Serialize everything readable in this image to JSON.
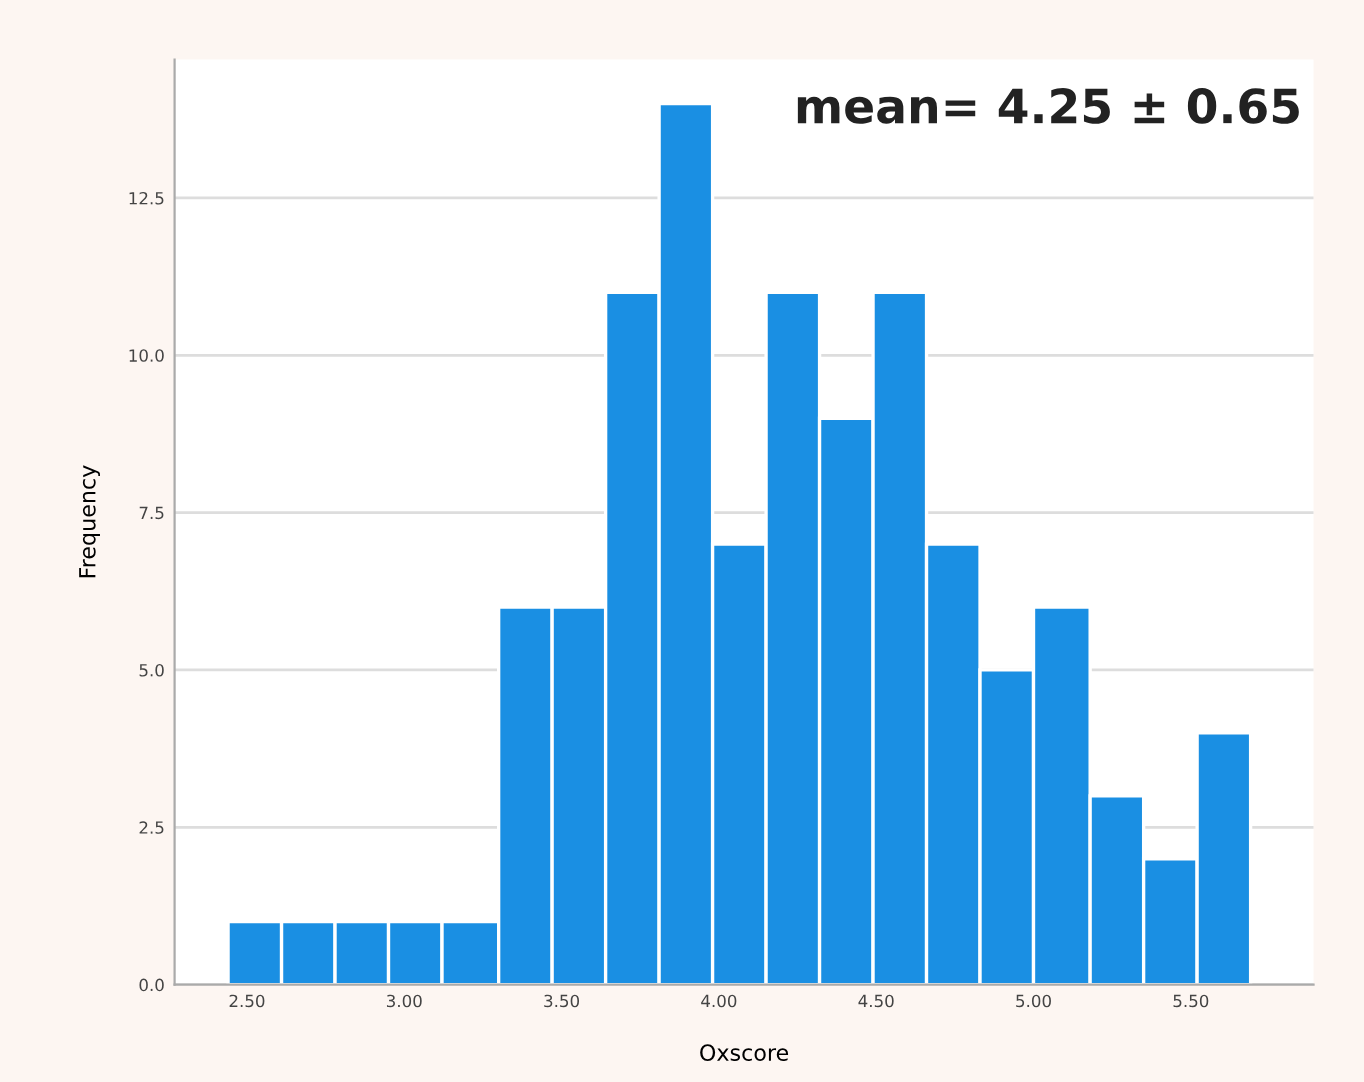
{
  "chart_data": {
    "type": "histogram",
    "xlabel": "Oxscore",
    "ylabel": "Frequency",
    "bins": [
      2.44,
      2.61,
      2.78,
      2.95,
      3.12,
      3.3,
      3.47,
      3.64,
      3.81,
      3.98,
      4.15,
      4.32,
      4.49,
      4.66,
      4.83,
      5.0,
      5.18,
      5.35,
      5.52,
      5.69
    ],
    "values": [
      1,
      1,
      1,
      1,
      1,
      6,
      6,
      11,
      14,
      7,
      11,
      9,
      11,
      7,
      5,
      6,
      3,
      2,
      4
    ],
    "color": "#1a8fe3",
    "xlim": [
      2.27,
      5.89
    ],
    "ylim": [
      0,
      14.7
    ],
    "xticks": [
      {
        "value": 2.5,
        "label": "2.50"
      },
      {
        "value": 3.0,
        "label": "3.00"
      },
      {
        "value": 3.5,
        "label": "3.50"
      },
      {
        "value": 4.0,
        "label": "4.00"
      },
      {
        "value": 4.5,
        "label": "4.50"
      },
      {
        "value": 5.0,
        "label": "5.00"
      },
      {
        "value": 5.5,
        "label": "5.50"
      }
    ],
    "yticks": [
      {
        "value": 0,
        "label": "0.0"
      },
      {
        "value": 2.5,
        "label": "2.5"
      },
      {
        "value": 5,
        "label": "5.0"
      },
      {
        "value": 7.5,
        "label": "7.5"
      },
      {
        "value": 10,
        "label": "10.0"
      },
      {
        "value": 12.5,
        "label": "12.5"
      }
    ],
    "grid": "y",
    "annotations": [
      "mean= 4.25 ± 0.65"
    ]
  }
}
